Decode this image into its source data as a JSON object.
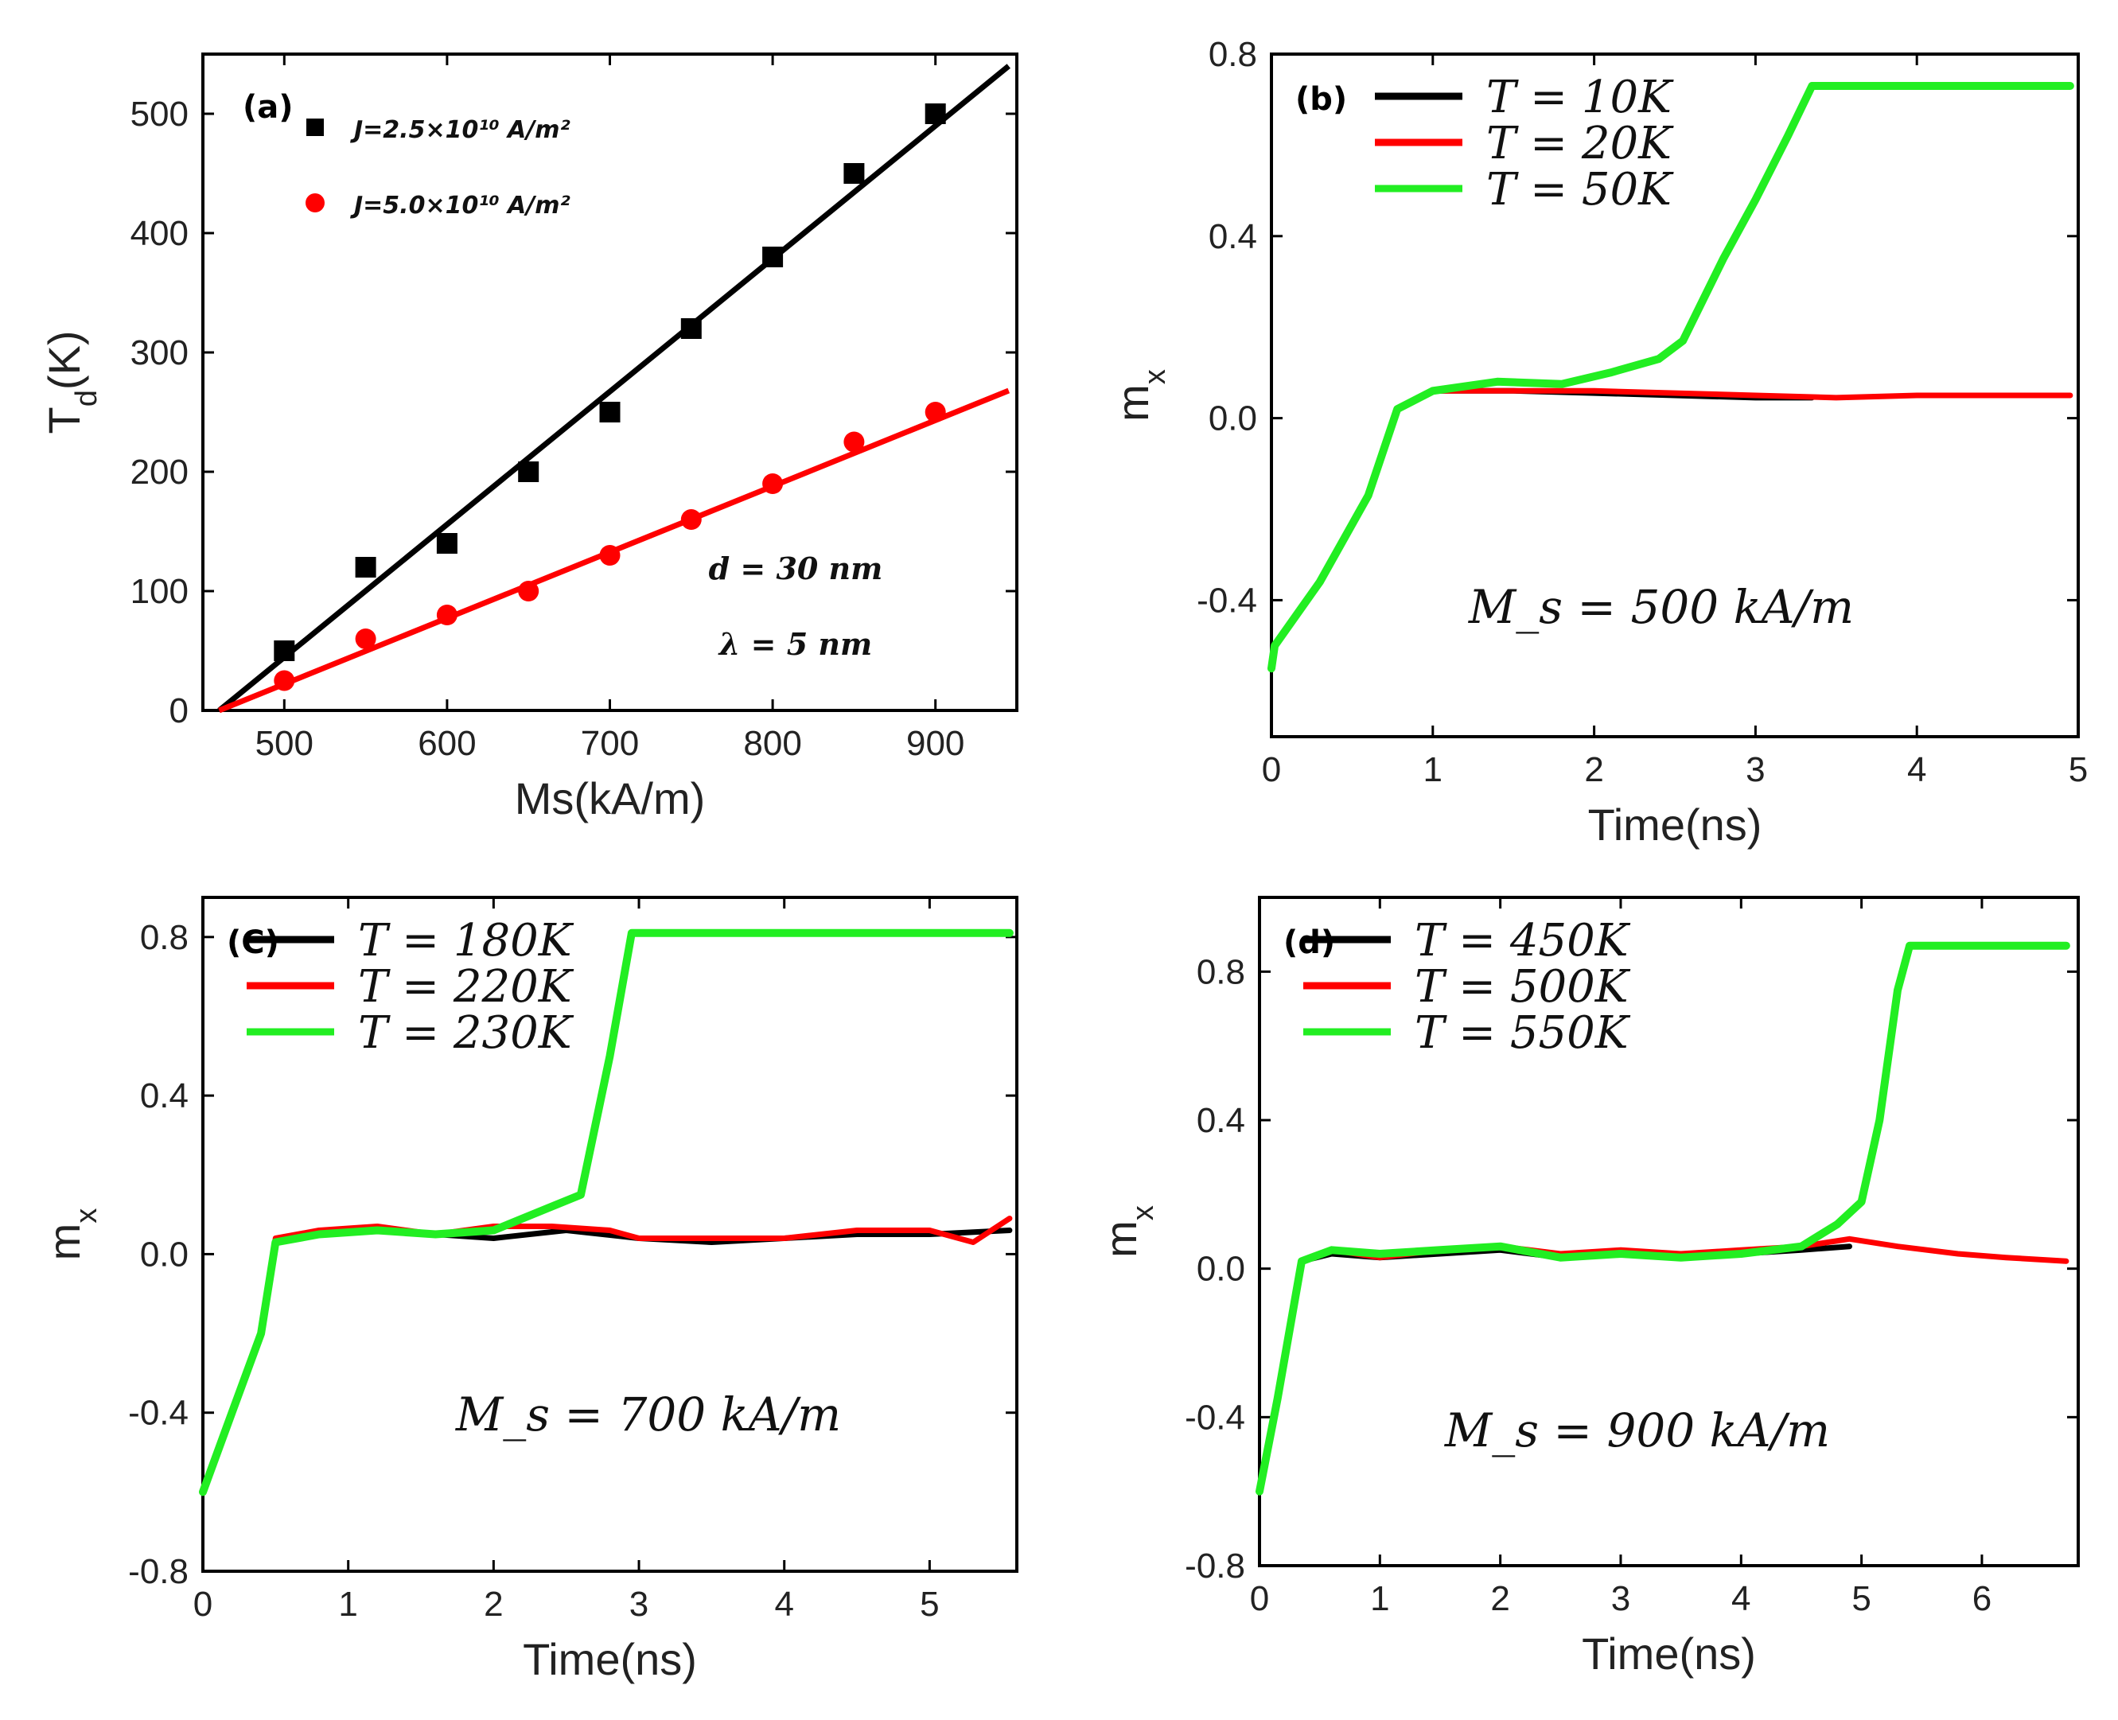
{
  "chart_data": [
    {
      "panel": "(a)",
      "type": "scatter",
      "xlabel": "Ms(kA/m)",
      "ylabel": "T_d(K)",
      "xlim": [
        450,
        950
      ],
      "ylim": [
        0,
        550
      ],
      "xticks": [
        500,
        600,
        700,
        800,
        900
      ],
      "yticks": [
        0,
        100,
        200,
        300,
        400,
        500
      ],
      "series": [
        {
          "name": "J=2.5×10¹⁰ A/m²",
          "color": "#000000",
          "marker": "square",
          "x": [
            500,
            550,
            600,
            650,
            700,
            750,
            800,
            850,
            900
          ],
          "y": [
            50,
            120,
            140,
            200,
            250,
            320,
            380,
            450,
            500
          ],
          "fit": [
            [
              460,
              0
            ],
            [
              945,
              540
            ]
          ]
        },
        {
          "name": "J=5.0×10¹⁰ A/m²",
          "color": "#ff0000",
          "marker": "circle",
          "x": [
            500,
            550,
            600,
            650,
            700,
            750,
            800,
            850,
            900
          ],
          "y": [
            25,
            60,
            80,
            100,
            130,
            160,
            190,
            225,
            250
          ],
          "fit": [
            [
              460,
              0
            ],
            [
              945,
              268
            ]
          ]
        }
      ],
      "annotations": [
        "d = 30 nm",
        "λ = 5 nm"
      ]
    },
    {
      "panel": "(b)",
      "type": "line",
      "xlabel": "Time(ns)",
      "ylabel": "m_x",
      "xlim": [
        0,
        5
      ],
      "ylim": [
        -0.7,
        0.8
      ],
      "xticks": [
        0,
        1,
        2,
        3,
        4,
        5
      ],
      "yticks": [
        -0.4,
        0.0,
        0.4,
        0.8
      ],
      "series": [
        {
          "name": "T = 10K",
          "color": "#000000",
          "points": [
            [
              0,
              -0.55
            ],
            [
              0.02,
              -0.5
            ],
            [
              0.3,
              -0.36
            ],
            [
              0.6,
              -0.17
            ],
            [
              0.78,
              0.02
            ],
            [
              1.0,
              0.06
            ],
            [
              1.5,
              0.06
            ],
            [
              2.0,
              0.055
            ],
            [
              2.5,
              0.05
            ],
            [
              3.0,
              0.045
            ],
            [
              3.35,
              0.045
            ]
          ]
        },
        {
          "name": "T = 20K",
          "color": "#ff0000",
          "points": [
            [
              0,
              -0.55
            ],
            [
              0.02,
              -0.5
            ],
            [
              0.3,
              -0.36
            ],
            [
              0.6,
              -0.17
            ],
            [
              0.78,
              0.02
            ],
            [
              1.0,
              0.06
            ],
            [
              1.5,
              0.06
            ],
            [
              2.0,
              0.06
            ],
            [
              2.5,
              0.055
            ],
            [
              3.0,
              0.05
            ],
            [
              3.5,
              0.045
            ],
            [
              4.0,
              0.05
            ],
            [
              4.95,
              0.05
            ]
          ]
        },
        {
          "name": "T = 50K",
          "color": "#22ee22",
          "points": [
            [
              0,
              -0.55
            ],
            [
              0.02,
              -0.5
            ],
            [
              0.3,
              -0.36
            ],
            [
              0.6,
              -0.17
            ],
            [
              0.78,
              0.02
            ],
            [
              1.0,
              0.06
            ],
            [
              1.4,
              0.08
            ],
            [
              1.8,
              0.075
            ],
            [
              2.1,
              0.1
            ],
            [
              2.4,
              0.13
            ],
            [
              2.55,
              0.17
            ],
            [
              2.8,
              0.35
            ],
            [
              3.0,
              0.48
            ],
            [
              3.2,
              0.62
            ],
            [
              3.35,
              0.73
            ],
            [
              4.0,
              0.73
            ],
            [
              4.95,
              0.73
            ]
          ]
        }
      ],
      "annotation": "M_s = 500 kA/m"
    },
    {
      "panel": "(C)",
      "type": "line",
      "xlabel": "Time(ns)",
      "ylabel": "m_x",
      "xlim": [
        0,
        5.6
      ],
      "ylim": [
        -0.8,
        0.9
      ],
      "xticks": [
        0,
        1,
        2,
        3,
        4,
        5
      ],
      "yticks": [
        -0.8,
        -0.4,
        0.0,
        0.4,
        0.8
      ],
      "series": [
        {
          "name": "T = 180K",
          "color": "#000000",
          "points": [
            [
              0,
              -0.6
            ],
            [
              0.2,
              -0.4
            ],
            [
              0.4,
              -0.2
            ],
            [
              0.5,
              0.03
            ],
            [
              0.8,
              0.05
            ],
            [
              1.2,
              0.06
            ],
            [
              1.6,
              0.05
            ],
            [
              2.0,
              0.04
            ],
            [
              2.5,
              0.06
            ],
            [
              3.0,
              0.04
            ],
            [
              3.5,
              0.03
            ],
            [
              4.0,
              0.04
            ],
            [
              4.5,
              0.05
            ],
            [
              5.0,
              0.05
            ],
            [
              5.55,
              0.06
            ]
          ]
        },
        {
          "name": "T = 220K",
          "color": "#ff0000",
          "points": [
            [
              0,
              -0.6
            ],
            [
              0.2,
              -0.4
            ],
            [
              0.4,
              -0.2
            ],
            [
              0.5,
              0.04
            ],
            [
              0.8,
              0.06
            ],
            [
              1.2,
              0.07
            ],
            [
              1.6,
              0.05
            ],
            [
              2.0,
              0.07
            ],
            [
              2.4,
              0.07
            ],
            [
              2.8,
              0.06
            ],
            [
              3.0,
              0.04
            ],
            [
              3.5,
              0.04
            ],
            [
              4.0,
              0.04
            ],
            [
              4.5,
              0.06
            ],
            [
              5.0,
              0.06
            ],
            [
              5.3,
              0.03
            ],
            [
              5.55,
              0.09
            ]
          ]
        },
        {
          "name": "T = 230K",
          "color": "#22ee22",
          "points": [
            [
              0,
              -0.6
            ],
            [
              0.2,
              -0.4
            ],
            [
              0.4,
              -0.2
            ],
            [
              0.5,
              0.03
            ],
            [
              0.8,
              0.05
            ],
            [
              1.2,
              0.06
            ],
            [
              1.6,
              0.05
            ],
            [
              2.0,
              0.06
            ],
            [
              2.4,
              0.12
            ],
            [
              2.6,
              0.15
            ],
            [
              2.8,
              0.5
            ],
            [
              2.95,
              0.81
            ],
            [
              4.0,
              0.81
            ],
            [
              5.55,
              0.81
            ]
          ]
        }
      ],
      "annotation": "M_s = 700 kA/m"
    },
    {
      "panel": "(d)",
      "type": "line",
      "xlabel": "Time(ns)",
      "ylabel": "m_x",
      "xlim": [
        0,
        6.8
      ],
      "ylim": [
        -0.8,
        1.0
      ],
      "xticks": [
        0,
        1,
        2,
        3,
        4,
        5,
        6
      ],
      "yticks": [
        -0.8,
        -0.4,
        0.0,
        0.4,
        0.8
      ],
      "series": [
        {
          "name": "T = 450K",
          "color": "#000000",
          "points": [
            [
              0,
              -0.6
            ],
            [
              0.15,
              -0.35
            ],
            [
              0.35,
              0.02
            ],
            [
              0.6,
              0.04
            ],
            [
              1.0,
              0.03
            ],
            [
              1.5,
              0.04
            ],
            [
              2.0,
              0.05
            ],
            [
              2.5,
              0.03
            ],
            [
              3.0,
              0.04
            ],
            [
              3.5,
              0.03
            ],
            [
              4.0,
              0.04
            ],
            [
              4.5,
              0.05
            ],
            [
              4.9,
              0.06
            ]
          ]
        },
        {
          "name": "T = 500K",
          "color": "#ff0000",
          "points": [
            [
              0,
              -0.6
            ],
            [
              0.15,
              -0.35
            ],
            [
              0.35,
              0.02
            ],
            [
              0.6,
              0.05
            ],
            [
              1.0,
              0.03
            ],
            [
              1.5,
              0.05
            ],
            [
              2.0,
              0.06
            ],
            [
              2.5,
              0.04
            ],
            [
              3.0,
              0.05
            ],
            [
              3.5,
              0.04
            ],
            [
              4.0,
              0.05
            ],
            [
              4.5,
              0.06
            ],
            [
              4.9,
              0.08
            ],
            [
              5.3,
              0.06
            ],
            [
              5.8,
              0.04
            ],
            [
              6.2,
              0.03
            ],
            [
              6.7,
              0.02
            ]
          ]
        },
        {
          "name": "T = 550K",
          "color": "#22ee22",
          "points": [
            [
              0,
              -0.6
            ],
            [
              0.15,
              -0.35
            ],
            [
              0.35,
              0.02
            ],
            [
              0.6,
              0.05
            ],
            [
              1.0,
              0.04
            ],
            [
              1.5,
              0.05
            ],
            [
              2.0,
              0.06
            ],
            [
              2.5,
              0.03
            ],
            [
              3.0,
              0.04
            ],
            [
              3.5,
              0.03
            ],
            [
              4.0,
              0.04
            ],
            [
              4.5,
              0.06
            ],
            [
              4.8,
              0.12
            ],
            [
              5.0,
              0.18
            ],
            [
              5.15,
              0.4
            ],
            [
              5.3,
              0.75
            ],
            [
              5.4,
              0.87
            ],
            [
              6.0,
              0.87
            ],
            [
              6.7,
              0.87
            ]
          ]
        }
      ],
      "annotation": "M_s = 900 kA/m"
    }
  ]
}
